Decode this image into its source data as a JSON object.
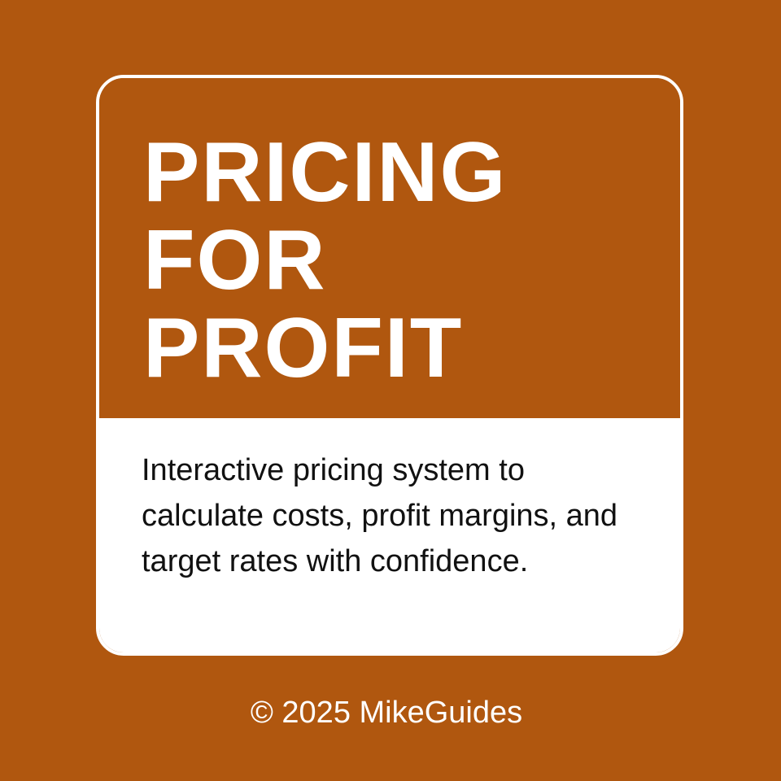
{
  "colors": {
    "background": "#b0570f",
    "card_border": "#ffffff",
    "panel_bottom": "#ffffff",
    "title_text": "#ffffff",
    "description_text": "#111111",
    "footer_text": "#ffffff"
  },
  "card": {
    "title_lines": [
      "PRICING",
      "FOR",
      "PROFIT"
    ],
    "description": "Interactive pricing system to calculate costs, profit margins, and target rates with confidence."
  },
  "footer": {
    "copyright": "© 2025 MikeGuides"
  }
}
